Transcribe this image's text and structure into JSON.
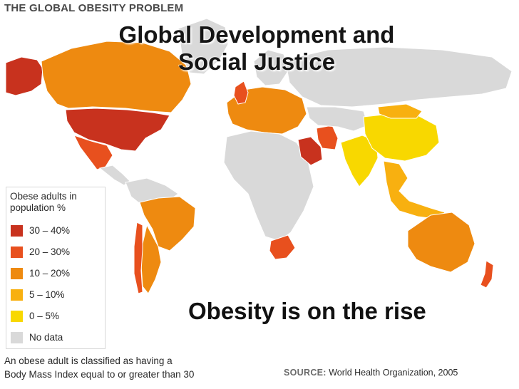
{
  "header": {
    "title": "THE GLOBAL OBESITY PROBLEM"
  },
  "slide": {
    "title_line1": "Global Development and",
    "title_line2": "Social Justice",
    "subtitle": "Obesity is on the rise"
  },
  "legend": {
    "title_line1": "Obese adults in",
    "title_line2": "population %",
    "items": [
      {
        "label": "30 – 40%",
        "color": "#c8321e"
      },
      {
        "label": "20 – 30%",
        "color": "#e8501e"
      },
      {
        "label": "10 – 20%",
        "color": "#ee8a10"
      },
      {
        "label": "5 – 10%",
        "color": "#f8b010"
      },
      {
        "label": "0 – 5%",
        "color": "#f8d800"
      },
      {
        "label": "No data",
        "color": "#d9d9d9"
      }
    ]
  },
  "footnote": {
    "line1": "An obese adult is classified as having a",
    "line2": "Body Mass Index equal to or greater than 30"
  },
  "source": {
    "label": "SOURCE:",
    "text": "World Health Organization, 2005"
  },
  "regions": [
    {
      "name": "Alaska",
      "category": "30 – 40%"
    },
    {
      "name": "Canada",
      "category": "10 – 20%"
    },
    {
      "name": "Greenland",
      "category": "No data"
    },
    {
      "name": "United States",
      "category": "30 – 40%"
    },
    {
      "name": "Mexico",
      "category": "20 – 30%"
    },
    {
      "name": "Central America",
      "category": "No data"
    },
    {
      "name": "South America (north)",
      "category": "No data"
    },
    {
      "name": "Brazil",
      "category": "10 – 20%"
    },
    {
      "name": "Argentina",
      "category": "10 – 20%"
    },
    {
      "name": "Chile",
      "category": "20 – 30%"
    },
    {
      "name": "Europe",
      "category": "10 – 20%"
    },
    {
      "name": "United Kingdom",
      "category": "20 – 30%"
    },
    {
      "name": "Scandinavia",
      "category": "No data"
    },
    {
      "name": "Russia",
      "category": "No data"
    },
    {
      "name": "Africa",
      "category": "No data"
    },
    {
      "name": "South Africa",
      "category": "20 – 30%"
    },
    {
      "name": "Saudi Arabia",
      "category": "30 – 40%"
    },
    {
      "name": "Iran",
      "category": "20 – 30%"
    },
    {
      "name": "Central Asia",
      "category": "No data"
    },
    {
      "name": "India",
      "category": "0 – 5%"
    },
    {
      "name": "China",
      "category": "0 – 5%"
    },
    {
      "name": "Mongolia",
      "category": "5 – 10%"
    },
    {
      "name": "Southeast Asia",
      "category": "5 – 10%"
    },
    {
      "name": "Australia",
      "category": "10 – 20%"
    },
    {
      "name": "New Zealand",
      "category": "20 – 30%"
    }
  ]
}
